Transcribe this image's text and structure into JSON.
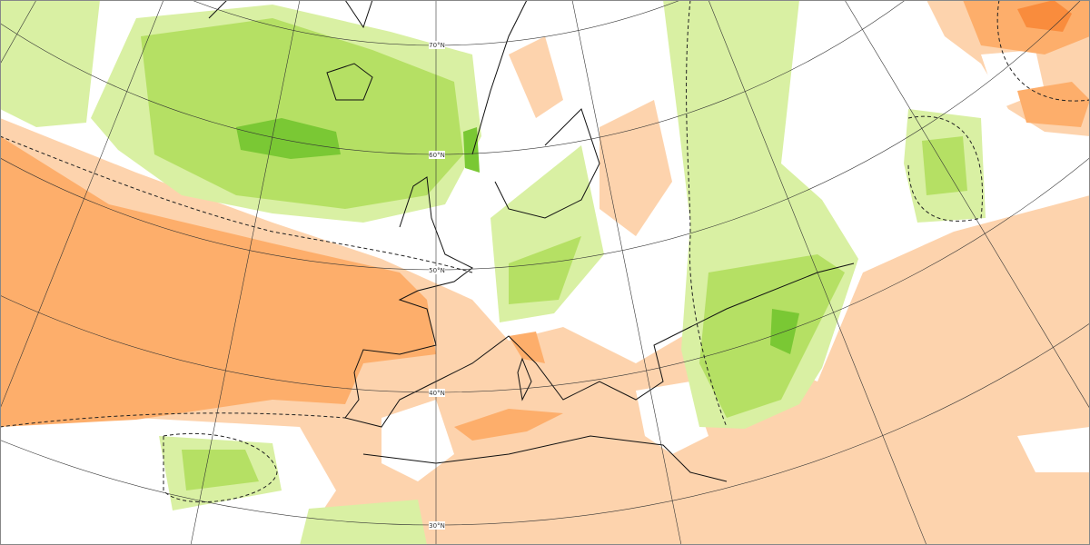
{
  "latitude_labels": [
    "70°N",
    "60°N",
    "50°N",
    "40°N",
    "30°N"
  ]
}
